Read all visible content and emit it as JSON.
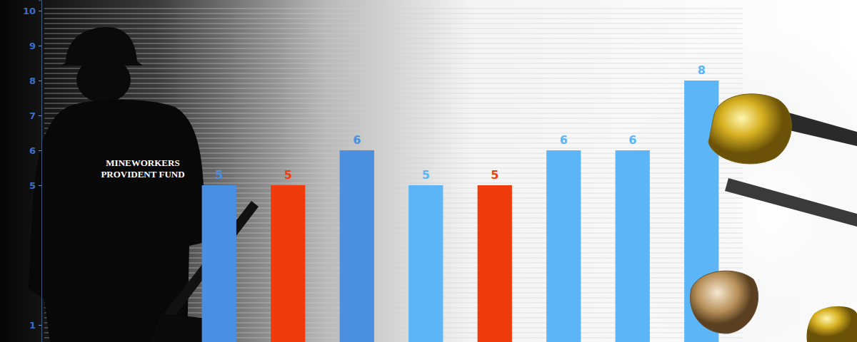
{
  "chart_data": {
    "type": "bar",
    "categories": [
      null,
      null,
      null,
      null,
      null,
      null,
      null,
      null
    ],
    "values": [
      5,
      5,
      6,
      5,
      5,
      6,
      6,
      8
    ],
    "colors": [
      "#4a90e2",
      "#f03c0c",
      "#4b8fdf",
      "#5bb5f6",
      "#f03c0c",
      "#5bb5f6",
      "#5bb5f6",
      "#5bb5f6"
    ],
    "ylim": [
      0.5,
      10.3
    ],
    "yticks": [
      1,
      5,
      6,
      7,
      8,
      9,
      10
    ],
    "data_labels": true,
    "tick_labels": "y",
    "annotations": [
      "MINEWORKERS",
      "PROVIDENT FUND"
    ]
  }
}
